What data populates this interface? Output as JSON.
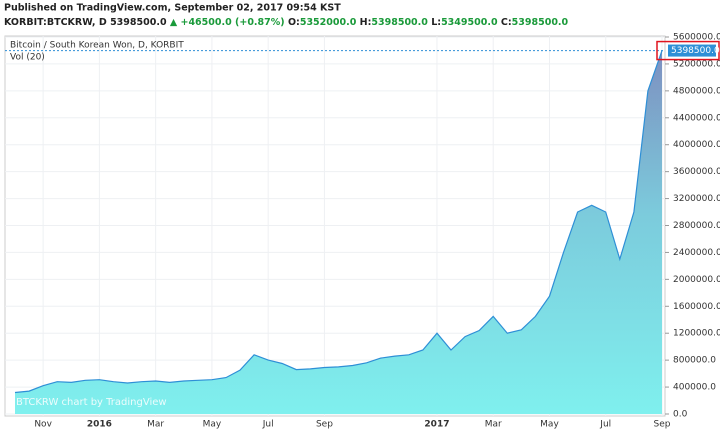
{
  "header": {
    "published": "Published on TradingView.com, September 02, 2017 09:54 KST",
    "symbol": "KORBIT:BTCKRW, D",
    "price": "5398500.0",
    "change": "▲ +46500.0 (+0.87%)",
    "ohlc": [
      {
        "key": "O:",
        "val": "5352000.0"
      },
      {
        "key": "H:",
        "val": "5398500.0"
      },
      {
        "key": "L:",
        "val": "5349500.0"
      },
      {
        "key": "C:",
        "val": "5398500.0"
      }
    ]
  },
  "chart_data": {
    "type": "area",
    "volume_label": "Vol (20)",
    "watermark": "BTCKRW chart by TradingView",
    "last_price_label": "5398500.0",
    "grid": true,
    "categories": [
      null,
      null,
      "Nov",
      null,
      null,
      null,
      "2016",
      null,
      null,
      null,
      "Mar",
      null,
      null,
      null,
      "May",
      null,
      null,
      null,
      "Jul",
      null,
      null,
      null,
      "Sep",
      null,
      null,
      null,
      null,
      null,
      null,
      null,
      "2017",
      null,
      null,
      null,
      "Mar",
      null,
      null,
      null,
      "May",
      null,
      null,
      null,
      "Jul",
      null,
      null,
      null,
      "Sep"
    ],
    "series": [
      {
        "name": "Bitcoin / South Korean Won, D, KORBIT",
        "color": "#2e8fd6",
        "values": [
          320000,
          340000,
          420000,
          480000,
          470000,
          500000,
          510000,
          480000,
          460000,
          480000,
          490000,
          470000,
          490000,
          500000,
          510000,
          540000,
          650000,
          880000,
          800000,
          750000,
          660000,
          670000,
          690000,
          700000,
          720000,
          760000,
          830000,
          860000,
          880000,
          950000,
          1200000,
          950000,
          1150000,
          1240000,
          1450000,
          1200000,
          1250000,
          1450000,
          1750000,
          2400000,
          3000000,
          3100000,
          3000000,
          2300000,
          3000000,
          4800000,
          5398500
        ]
      }
    ],
    "ylim": [
      0,
      5600000
    ],
    "yticks": [
      {
        "value": 0,
        "label": "0.0"
      },
      {
        "value": 400000,
        "label": "400000.0"
      },
      {
        "value": 800000,
        "label": "800000.0"
      },
      {
        "value": 1200000,
        "label": "1200000.0"
      },
      {
        "value": 1600000,
        "label": "1600000.0"
      },
      {
        "value": 2000000,
        "label": "2000000.0"
      },
      {
        "value": 2400000,
        "label": "2400000.0"
      },
      {
        "value": 2800000,
        "label": "2800000.0"
      },
      {
        "value": 3200000,
        "label": "3200000.0"
      },
      {
        "value": 3600000,
        "label": "3600000.0"
      },
      {
        "value": 4000000,
        "label": "4000000.0"
      },
      {
        "value": 4400000,
        "label": "4400000.0"
      },
      {
        "value": 4800000,
        "label": "4800000.0"
      },
      {
        "value": 5200000,
        "label": "5200000.0"
      },
      {
        "value": 5600000,
        "label": "5600000.0"
      }
    ]
  }
}
